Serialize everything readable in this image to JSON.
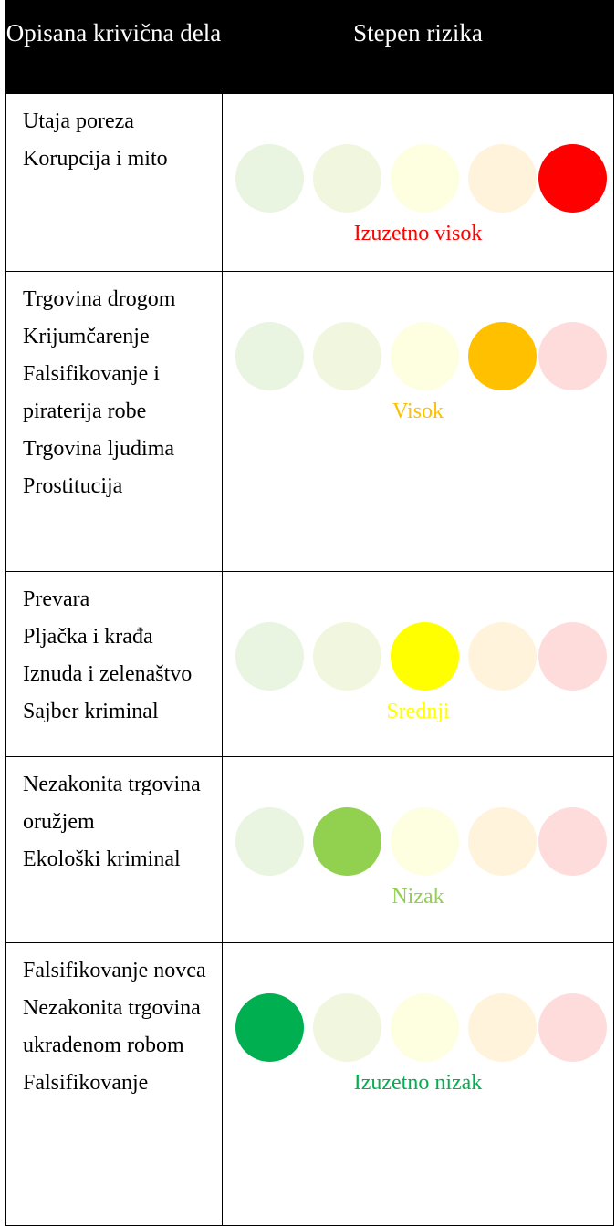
{
  "header": {
    "col1": "Opisana krivična dela",
    "col2": "Stepen rizika"
  },
  "scale_colors": {
    "pale": [
      "#e9f4e1",
      "#f1f6de",
      "#fefee1",
      "#fff3dc",
      "#ffdcdc"
    ],
    "bright": [
      "#00b050",
      "#92d050",
      "#ffff00",
      "#ffc000",
      "#ff0000"
    ]
  },
  "rows": [
    {
      "crimes": [
        "Utaja poreza",
        "Korupcija i mito"
      ],
      "risk": "Izuzetno visok",
      "level": 5
    },
    {
      "crimes": [
        "Trgovina drogom",
        "Krijumčarenje",
        "Falsifikovanje i piraterija robe",
        "Trgovina ljudima",
        "Prostitucija"
      ],
      "risk": "Visok",
      "level": 4
    },
    {
      "crimes": [
        "Prevara",
        "Pljačka i krađa",
        "Iznuda i zelenaštvo",
        "Sajber kriminal"
      ],
      "risk": "Srednji",
      "level": 3
    },
    {
      "crimes": [
        "Nezakonita trgovina oružjem",
        "Ekološki kriminal"
      ],
      "risk": "Nizak",
      "level": 2
    },
    {
      "crimes": [
        "Falsifikovanje novca",
        "Nezakonita trgovina ukradenom robom",
        "Falsifikovanje"
      ],
      "risk": "Izuzetno nizak",
      "level": 1
    }
  ]
}
